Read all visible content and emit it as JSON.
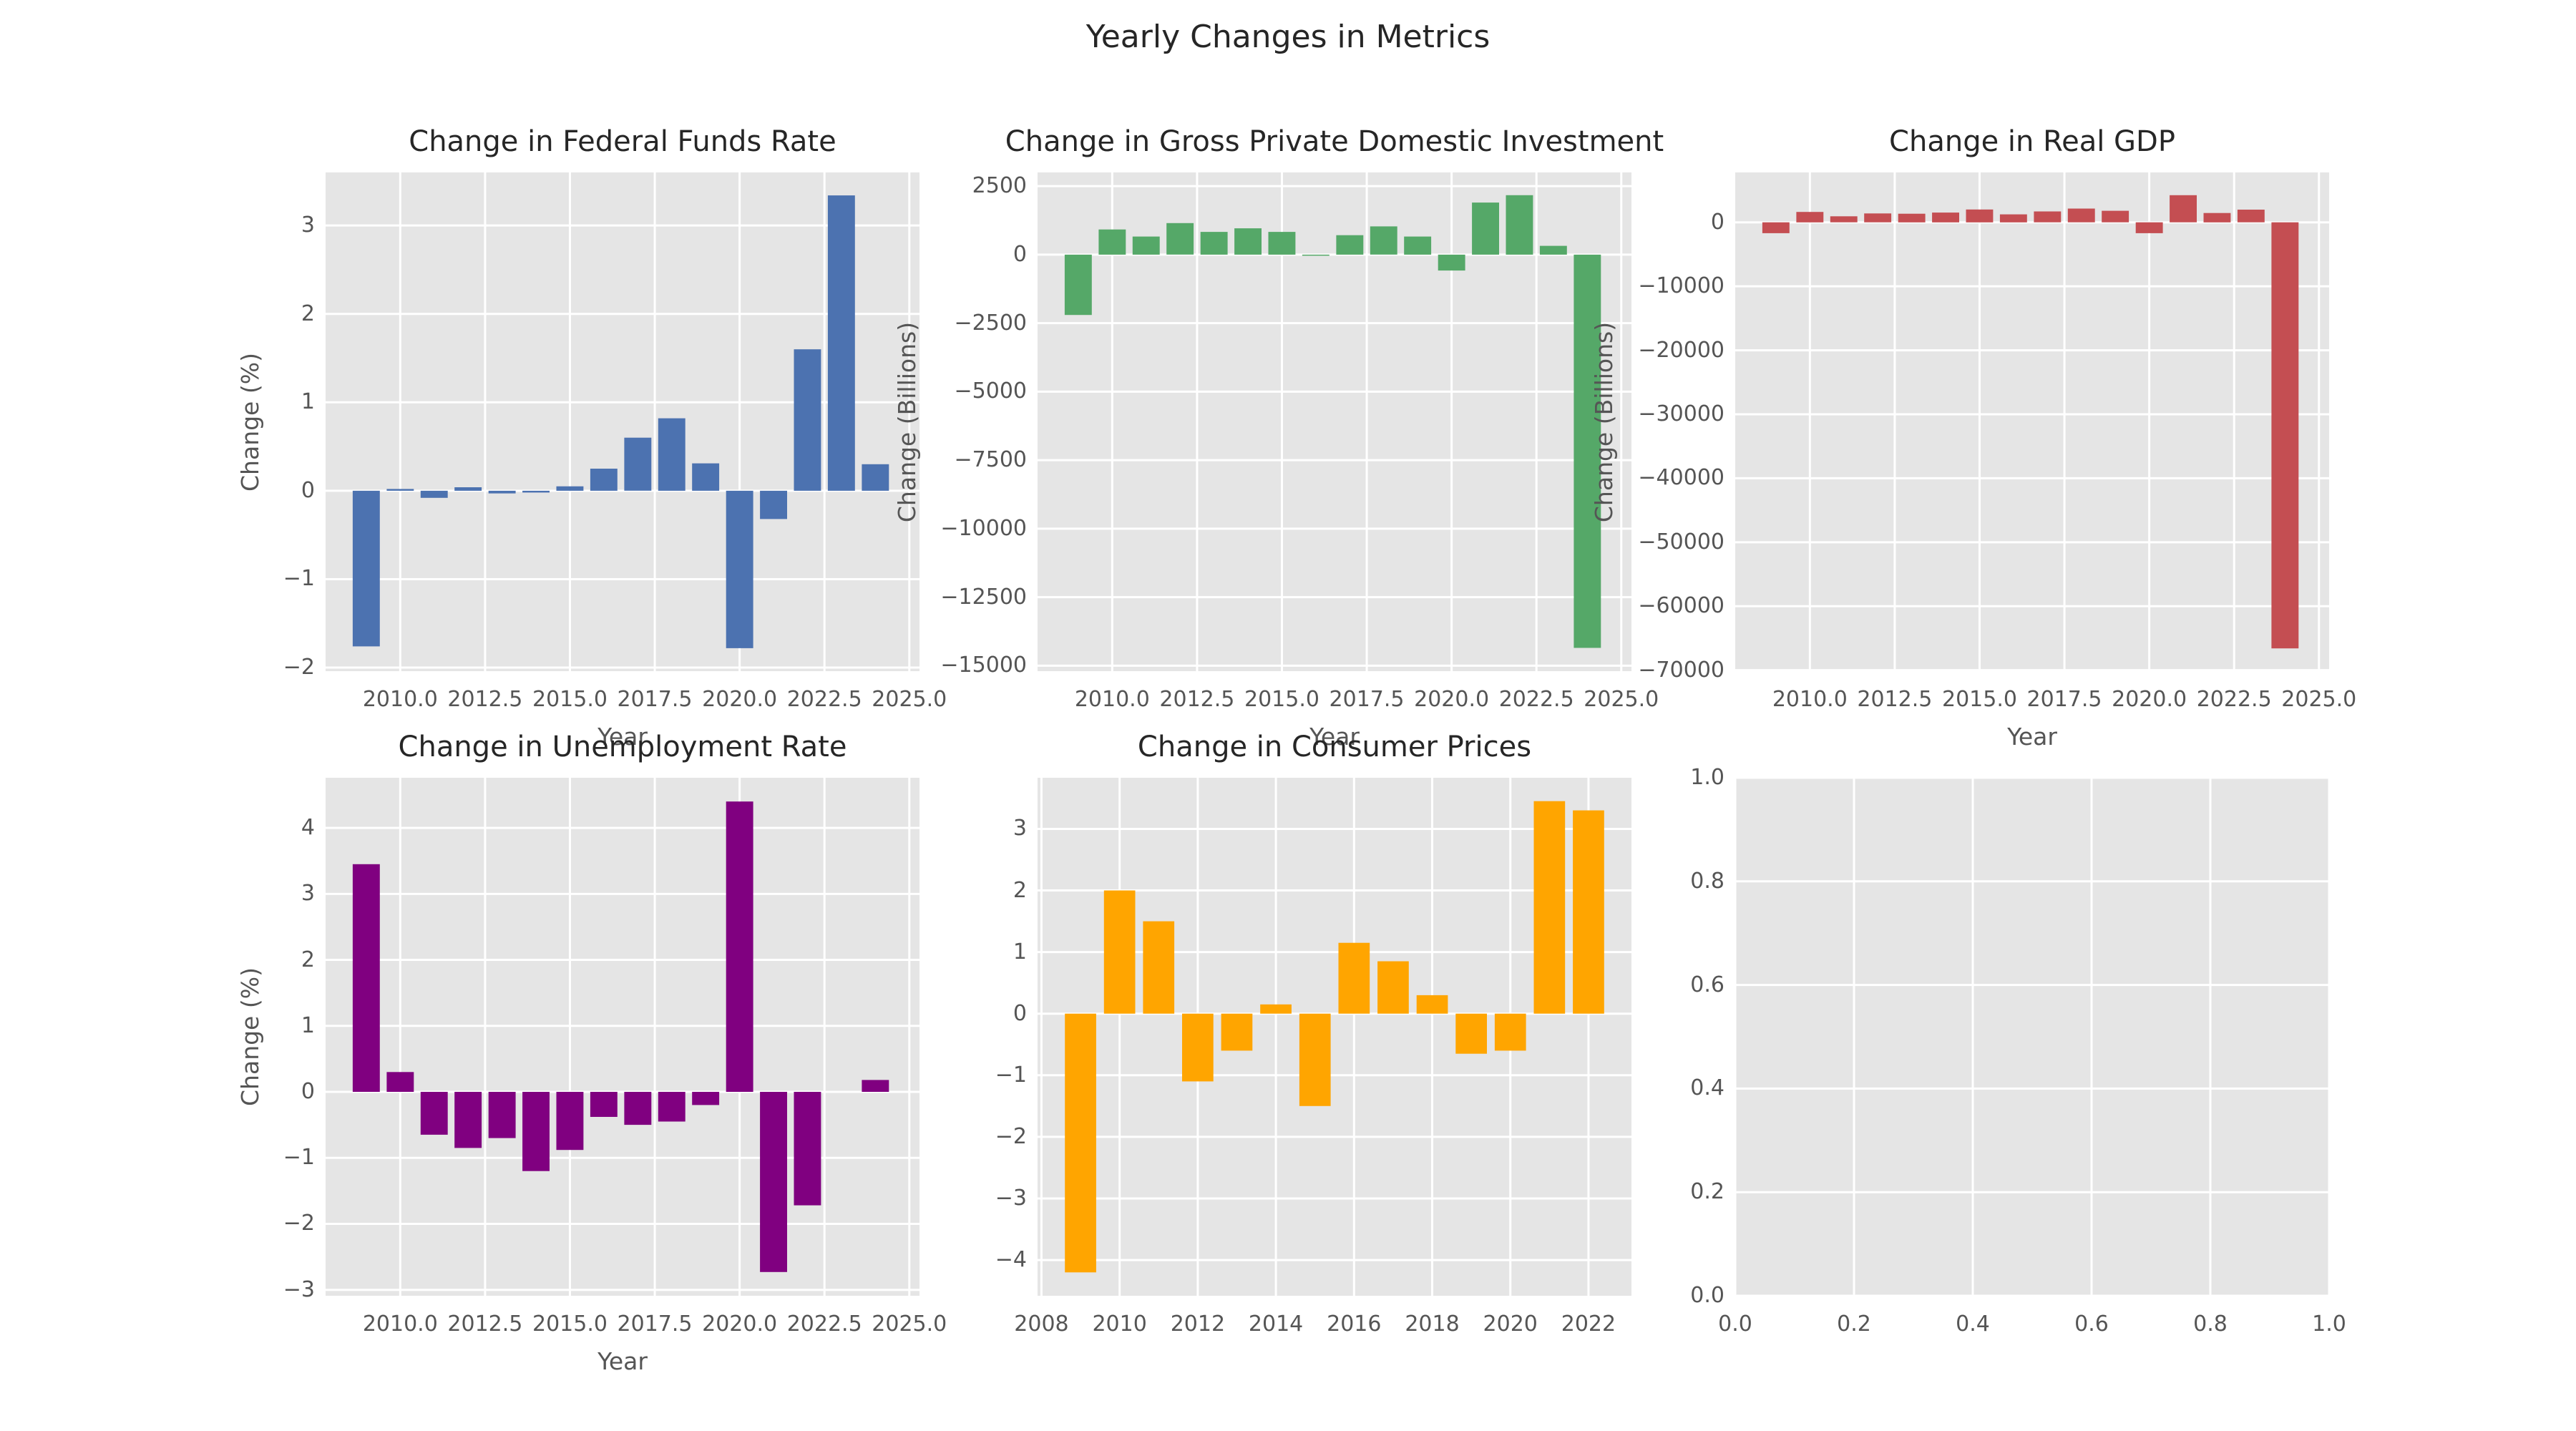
{
  "figure": {
    "suptitle": "Yearly Changes in Metrics",
    "background_color": "#ffffff",
    "plot_background_color": "#e5e5e5",
    "grid_color": "#ffffff",
    "tick_color": "#555555",
    "title_color": "#262626"
  },
  "chart_data": [
    {
      "type": "bar",
      "title": "Change in Federal Funds Rate",
      "xlabel": "Year",
      "ylabel": "Change (%)",
      "color": "#4C72B0",
      "years": [
        2009,
        2010,
        2011,
        2012,
        2013,
        2014,
        2015,
        2016,
        2017,
        2018,
        2019,
        2020,
        2021,
        2022,
        2023,
        2024
      ],
      "values": [
        -1.76,
        0.02,
        -0.08,
        0.04,
        -0.03,
        -0.02,
        0.05,
        0.25,
        0.6,
        0.82,
        0.31,
        -1.78,
        -0.32,
        1.6,
        3.34,
        0.3
      ],
      "bar_width": 0.8,
      "xlim": [
        2007.8,
        2025.3
      ],
      "ylim": [
        -2.04,
        3.6
      ],
      "xtick_values": [
        2010,
        2012.5,
        2015,
        2017.5,
        2020,
        2022.5,
        2025
      ],
      "xtick_labels": [
        "2010.0",
        "2012.5",
        "2015.0",
        "2017.5",
        "2020.0",
        "2022.5",
        "2025.0"
      ],
      "ytick_values": [
        3,
        2,
        1,
        0,
        -1,
        -2
      ],
      "ytick_labels": [
        "3",
        "2",
        "1",
        "0",
        "−1",
        "−2"
      ],
      "grid": true
    },
    {
      "type": "bar",
      "title": "Change in Gross Private Domestic Investment",
      "xlabel": "Year",
      "ylabel": "Change (Billions)",
      "color": "#55A868",
      "years": [
        2009,
        2010,
        2011,
        2012,
        2013,
        2014,
        2015,
        2016,
        2017,
        2018,
        2019,
        2020,
        2021,
        2022,
        2023,
        2024
      ],
      "values": [
        -2200,
        920,
        660,
        1150,
        830,
        960,
        830,
        -40,
        710,
        1030,
        660,
        -580,
        1900,
        2170,
        320,
        -14350
      ],
      "bar_width": 0.8,
      "xlim": [
        2007.8,
        2025.3
      ],
      "ylim": [
        -15200,
        3000
      ],
      "xtick_values": [
        2010,
        2012.5,
        2015,
        2017.5,
        2020,
        2022.5,
        2025
      ],
      "xtick_labels": [
        "2010.0",
        "2012.5",
        "2015.0",
        "2017.5",
        "2020.0",
        "2022.5",
        "2025.0"
      ],
      "ytick_values": [
        2500,
        0,
        -2500,
        -5000,
        -7500,
        -10000,
        -12500,
        -15000
      ],
      "ytick_labels": [
        "2500",
        "0",
        "−2500",
        "−5000",
        "−7500",
        "−10000",
        "−12500",
        "−15000"
      ],
      "grid": true
    },
    {
      "type": "bar",
      "title": "Change in Real GDP",
      "xlabel": "Year",
      "ylabel": "Change (Billions)",
      "color": "#C44E52",
      "years": [
        2009,
        2010,
        2011,
        2012,
        2013,
        2014,
        2015,
        2016,
        2017,
        2018,
        2019,
        2020,
        2021,
        2022,
        2023,
        2024
      ],
      "values": [
        -1700,
        1630,
        940,
        1390,
        1350,
        1530,
        2010,
        1250,
        1700,
        2150,
        1800,
        -1700,
        4240,
        1460,
        1980,
        -66600
      ],
      "bar_width": 0.8,
      "xlim": [
        2007.8,
        2025.3
      ],
      "ylim": [
        -70150,
        7800
      ],
      "xtick_values": [
        2010,
        2012.5,
        2015,
        2017.5,
        2020,
        2022.5,
        2025
      ],
      "xtick_labels": [
        "2010.0",
        "2012.5",
        "2015.0",
        "2017.5",
        "2020.0",
        "2022.5",
        "2025.0"
      ],
      "ytick_values": [
        0,
        -10000,
        -20000,
        -30000,
        -40000,
        -50000,
        -60000,
        -70000
      ],
      "ytick_labels": [
        "0",
        "−10000",
        "−20000",
        "−30000",
        "−40000",
        "−50000",
        "−60000",
        "−70000"
      ],
      "grid": true
    },
    {
      "type": "bar",
      "title": "Change in Unemployment Rate",
      "xlabel": "Year",
      "ylabel": "Change (%)",
      "color": "#800080",
      "years": [
        2009,
        2010,
        2011,
        2012,
        2013,
        2014,
        2015,
        2016,
        2017,
        2018,
        2019,
        2020,
        2021,
        2022,
        2023,
        2024
      ],
      "values": [
        3.45,
        0.3,
        -0.65,
        -0.85,
        -0.7,
        -1.2,
        -0.88,
        -0.38,
        -0.5,
        -0.45,
        -0.2,
        4.4,
        -2.73,
        -1.72,
        0.0,
        0.18
      ],
      "bar_width": 0.8,
      "xlim": [
        2007.8,
        2025.3
      ],
      "ylim": [
        -3.09,
        4.76
      ],
      "xtick_values": [
        2010,
        2012.5,
        2015,
        2017.5,
        2020,
        2022.5,
        2025
      ],
      "xtick_labels": [
        "2010.0",
        "2012.5",
        "2015.0",
        "2017.5",
        "2020.0",
        "2022.5",
        "2025.0"
      ],
      "ytick_values": [
        4,
        3,
        2,
        1,
        0,
        -1,
        -2,
        -3
      ],
      "ytick_labels": [
        "4",
        "3",
        "2",
        "1",
        "0",
        "−1",
        "−2",
        "−3"
      ],
      "grid": true
    },
    {
      "type": "bar",
      "title": "Change in Consumer Prices",
      "xlabel": "",
      "ylabel": "",
      "color": "#FFA500",
      "years": [
        2009,
        2010,
        2011,
        2012,
        2013,
        2014,
        2015,
        2016,
        2017,
        2018,
        2019,
        2020,
        2021,
        2022
      ],
      "values": [
        -4.2,
        2.0,
        1.5,
        -1.1,
        -0.6,
        0.15,
        -1.5,
        1.15,
        0.85,
        0.3,
        -0.65,
        -0.6,
        3.45,
        3.3
      ],
      "bar_width": 0.8,
      "xlim": [
        2007.9,
        2023.1
      ],
      "ylim": [
        -4.58,
        3.83
      ],
      "xtick_values": [
        2008,
        2010,
        2012,
        2014,
        2016,
        2018,
        2020,
        2022
      ],
      "xtick_labels": [
        "2008",
        "2010",
        "2012",
        "2014",
        "2016",
        "2018",
        "2020",
        "2022"
      ],
      "ytick_values": [
        3,
        2,
        1,
        0,
        -1,
        -2,
        -3,
        -4
      ],
      "ytick_labels": [
        "3",
        "2",
        "1",
        "0",
        "−1",
        "−2",
        "−3",
        "−4"
      ],
      "grid": true
    },
    {
      "type": "bar",
      "title": "",
      "xlabel": "",
      "ylabel": "",
      "color": "#e5e5e5",
      "years": [],
      "values": [],
      "bar_width": 0.8,
      "xlim": [
        0,
        1
      ],
      "ylim": [
        0,
        1
      ],
      "xtick_values": [
        0,
        0.2,
        0.4,
        0.6,
        0.8,
        1.0
      ],
      "xtick_labels": [
        "0.0",
        "0.2",
        "0.4",
        "0.6",
        "0.8",
        "1.0"
      ],
      "ytick_values": [
        1.0,
        0.8,
        0.6,
        0.4,
        0.2,
        0.0
      ],
      "ytick_labels": [
        "1.0",
        "0.8",
        "0.6",
        "0.4",
        "0.2",
        "0.0"
      ],
      "grid": true
    }
  ]
}
